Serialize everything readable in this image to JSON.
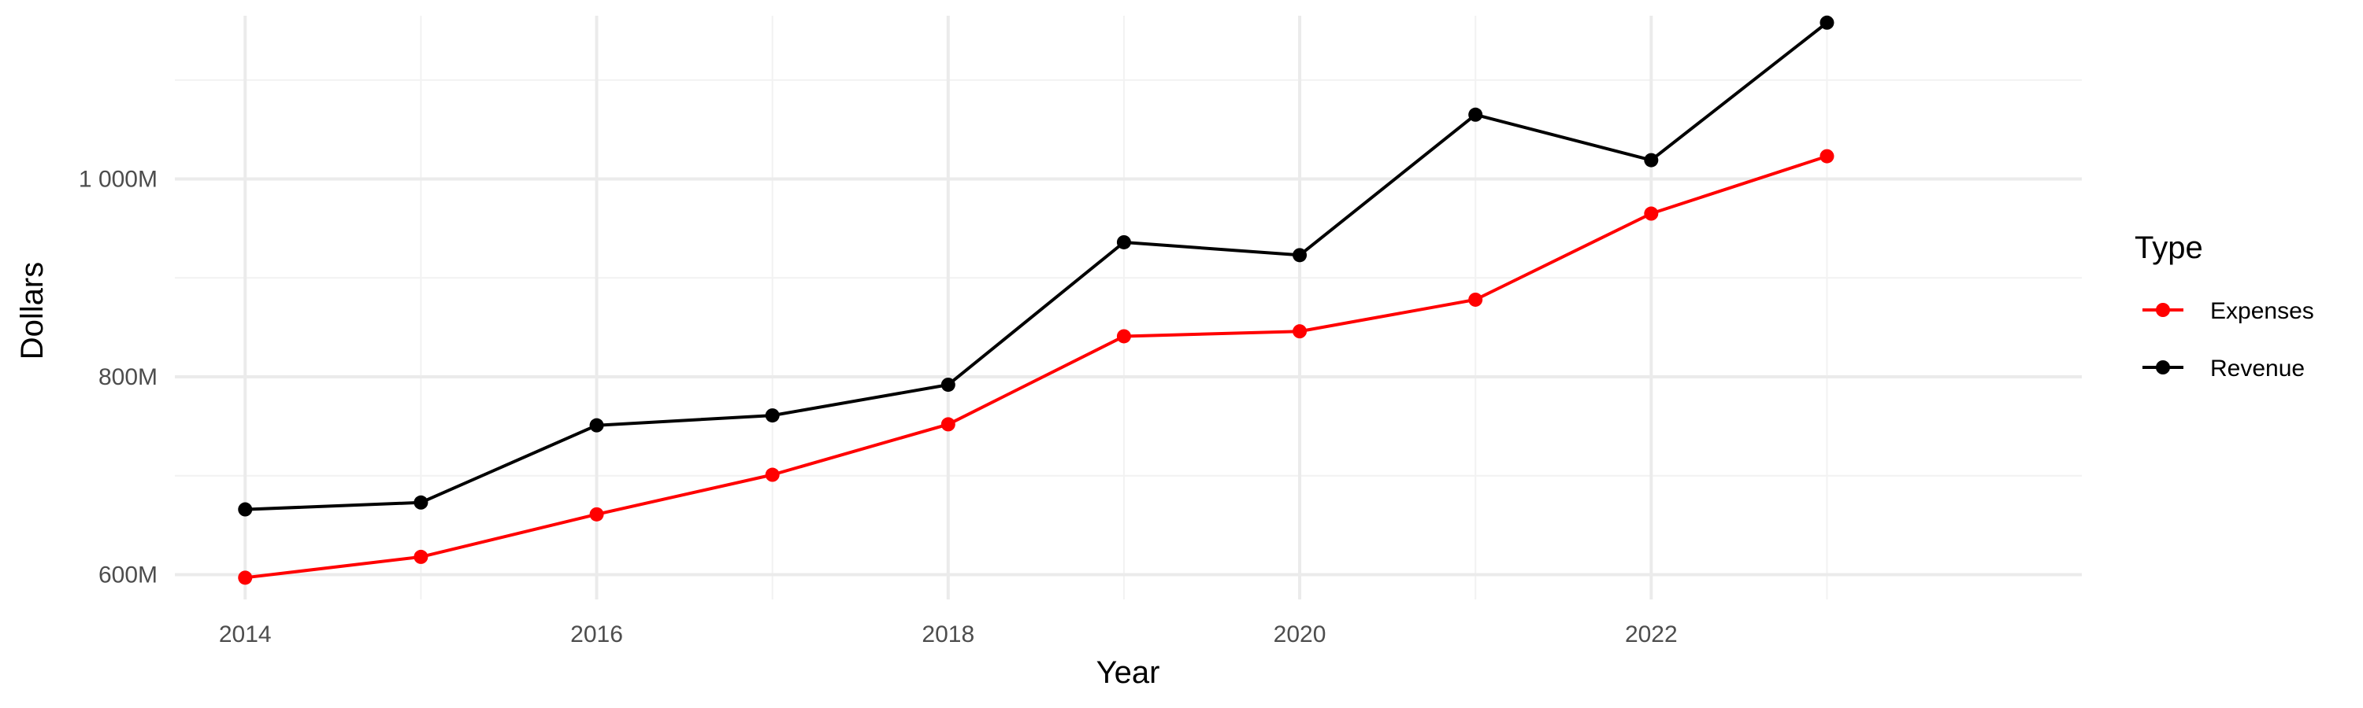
{
  "chart_data": {
    "type": "line",
    "xlabel": "Year",
    "ylabel": "Dollars",
    "x": [
      2014,
      2015,
      2016,
      2017,
      2018,
      2019,
      2020,
      2021,
      2022,
      2023
    ],
    "xlim": [
      2013.6,
      2024.45
    ],
    "ylim": [
      575,
      1165
    ],
    "x_ticks": [
      2014,
      2016,
      2018,
      2020,
      2022
    ],
    "x_tick_labels": [
      "2014",
      "2016",
      "2018",
      "2020",
      "2022"
    ],
    "y_ticks": [
      600,
      800,
      1000
    ],
    "y_tick_labels": [
      "600M",
      "800M",
      "1 000M"
    ],
    "y_minor_ticks": [
      700,
      900,
      1100
    ],
    "grid": true,
    "legend": {
      "title": "Type",
      "position": "right"
    },
    "series": [
      {
        "name": "Expenses",
        "color": "#ff0000",
        "values": [
          597,
          618,
          661,
          701,
          752,
          841,
          846,
          878,
          965,
          1023
        ]
      },
      {
        "name": "Revenue",
        "color": "#000000",
        "values": [
          666,
          673,
          751,
          761,
          792,
          936,
          923,
          1065,
          1019,
          1158
        ]
      }
    ]
  }
}
